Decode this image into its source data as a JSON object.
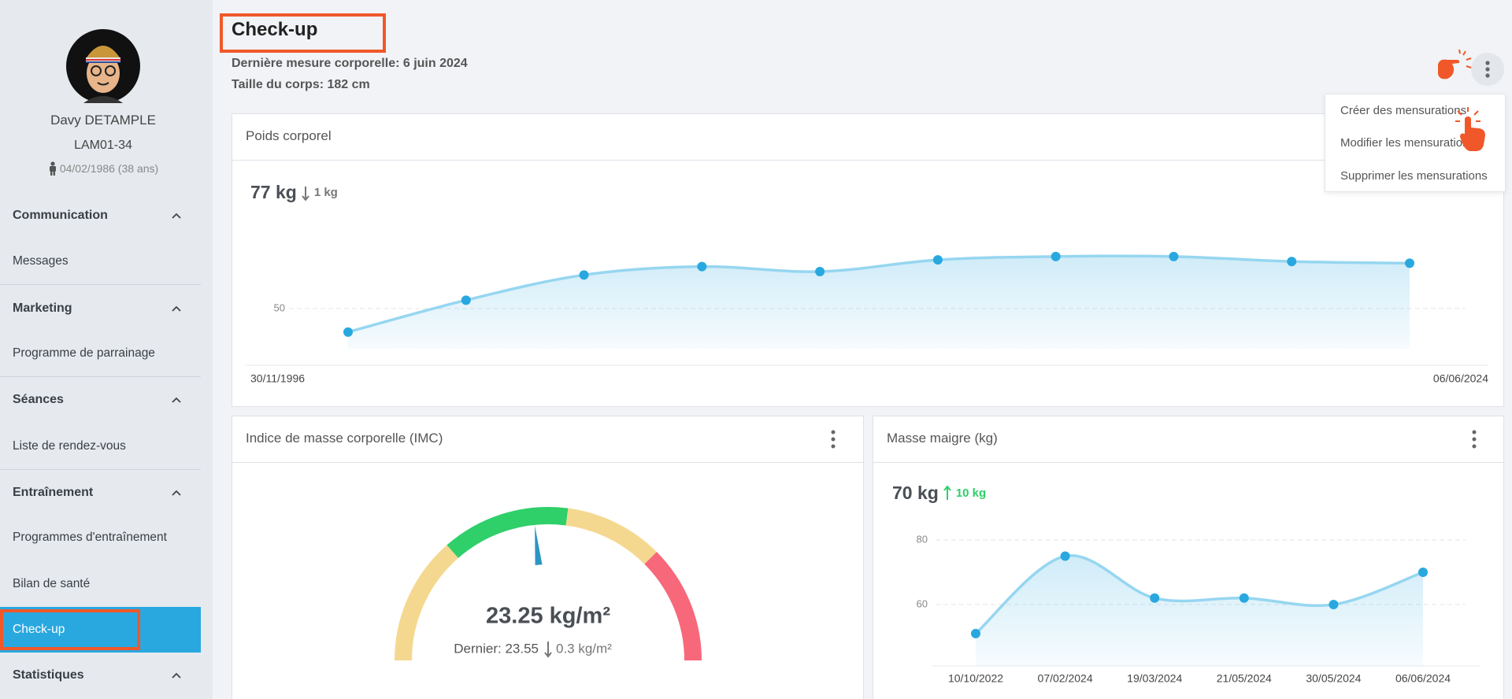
{
  "sidebar": {
    "profile": {
      "name": "Davy DETAMPLE",
      "code": "LAM01-34",
      "birth": "04/02/1986 (38 ans)"
    },
    "sections": [
      {
        "title": "Communication",
        "items": [
          {
            "label": "Messages"
          }
        ]
      },
      {
        "title": "Marketing",
        "items": [
          {
            "label": "Programme de parrainage"
          }
        ]
      },
      {
        "title": "Séances",
        "items": [
          {
            "label": "Liste de rendez-vous"
          }
        ]
      },
      {
        "title": "Entraînement",
        "items": [
          {
            "label": "Programmes d'entraînement"
          },
          {
            "label": "Bilan de santé"
          },
          {
            "label": "Check-up",
            "active": true
          }
        ]
      },
      {
        "title": "Statistiques",
        "items": []
      }
    ]
  },
  "header": {
    "title": "Check-up",
    "last_measure": "Dernière mesure corporelle: 6 juin 2024",
    "height": "Taille du corps: 182 cm"
  },
  "menu": {
    "items": [
      "Créer des mensurations",
      "Modifier les mensurations",
      "Supprimer les mensurations"
    ]
  },
  "chart_data": [
    {
      "type": "line",
      "title": "Poids corporel",
      "current_label": "77 kg",
      "delta_label": "1 kg",
      "delta_direction": "down",
      "delta_color": "#777777",
      "categories": [
        "30/11/1996",
        null,
        null,
        null,
        null,
        null,
        null,
        null,
        null,
        "06/06/2024"
      ],
      "values": [
        36,
        55,
        70,
        75,
        72,
        79,
        81,
        81,
        78,
        77
      ],
      "ylim": [
        26,
        100
      ],
      "yticks": [
        50
      ],
      "color": "#29a8e0",
      "line_color": "#96d6f0",
      "grid": true
    },
    {
      "type": "gauge",
      "title": "Indice de masse corporelle (IMC)",
      "value": 23.25,
      "value_label": "23.25 kg/m²",
      "last_label": "Dernier: 23.55",
      "delta_label": "0.3 kg/m²",
      "delta_direction": "down",
      "delta_color": "#777777",
      "ylim": [
        12,
        36
      ],
      "needle_color": "#2b95c4",
      "bands": [
        {
          "to": 18.5,
          "color": "#f5d890"
        },
        {
          "to": 25,
          "color": "#2fcf6a"
        },
        {
          "to": 30,
          "color": "#f5d890"
        },
        {
          "to": 36,
          "color": "#f7687a"
        }
      ]
    },
    {
      "type": "line",
      "title": "Masse maigre (kg)",
      "current_label": "70 kg",
      "delta_label": "10 kg",
      "delta_direction": "up",
      "delta_color": "#2fcf6a",
      "categories": [
        "10/10/2022",
        "07/02/2024",
        "19/03/2024",
        "21/05/2024",
        "30/05/2024",
        "06/06/2024"
      ],
      "values": [
        51,
        75,
        62,
        62,
        60,
        70
      ],
      "ylim": [
        41,
        86
      ],
      "yticks": [
        60,
        80
      ],
      "color": "#29a8e0",
      "line_color": "#96d6f0",
      "grid": true
    }
  ]
}
